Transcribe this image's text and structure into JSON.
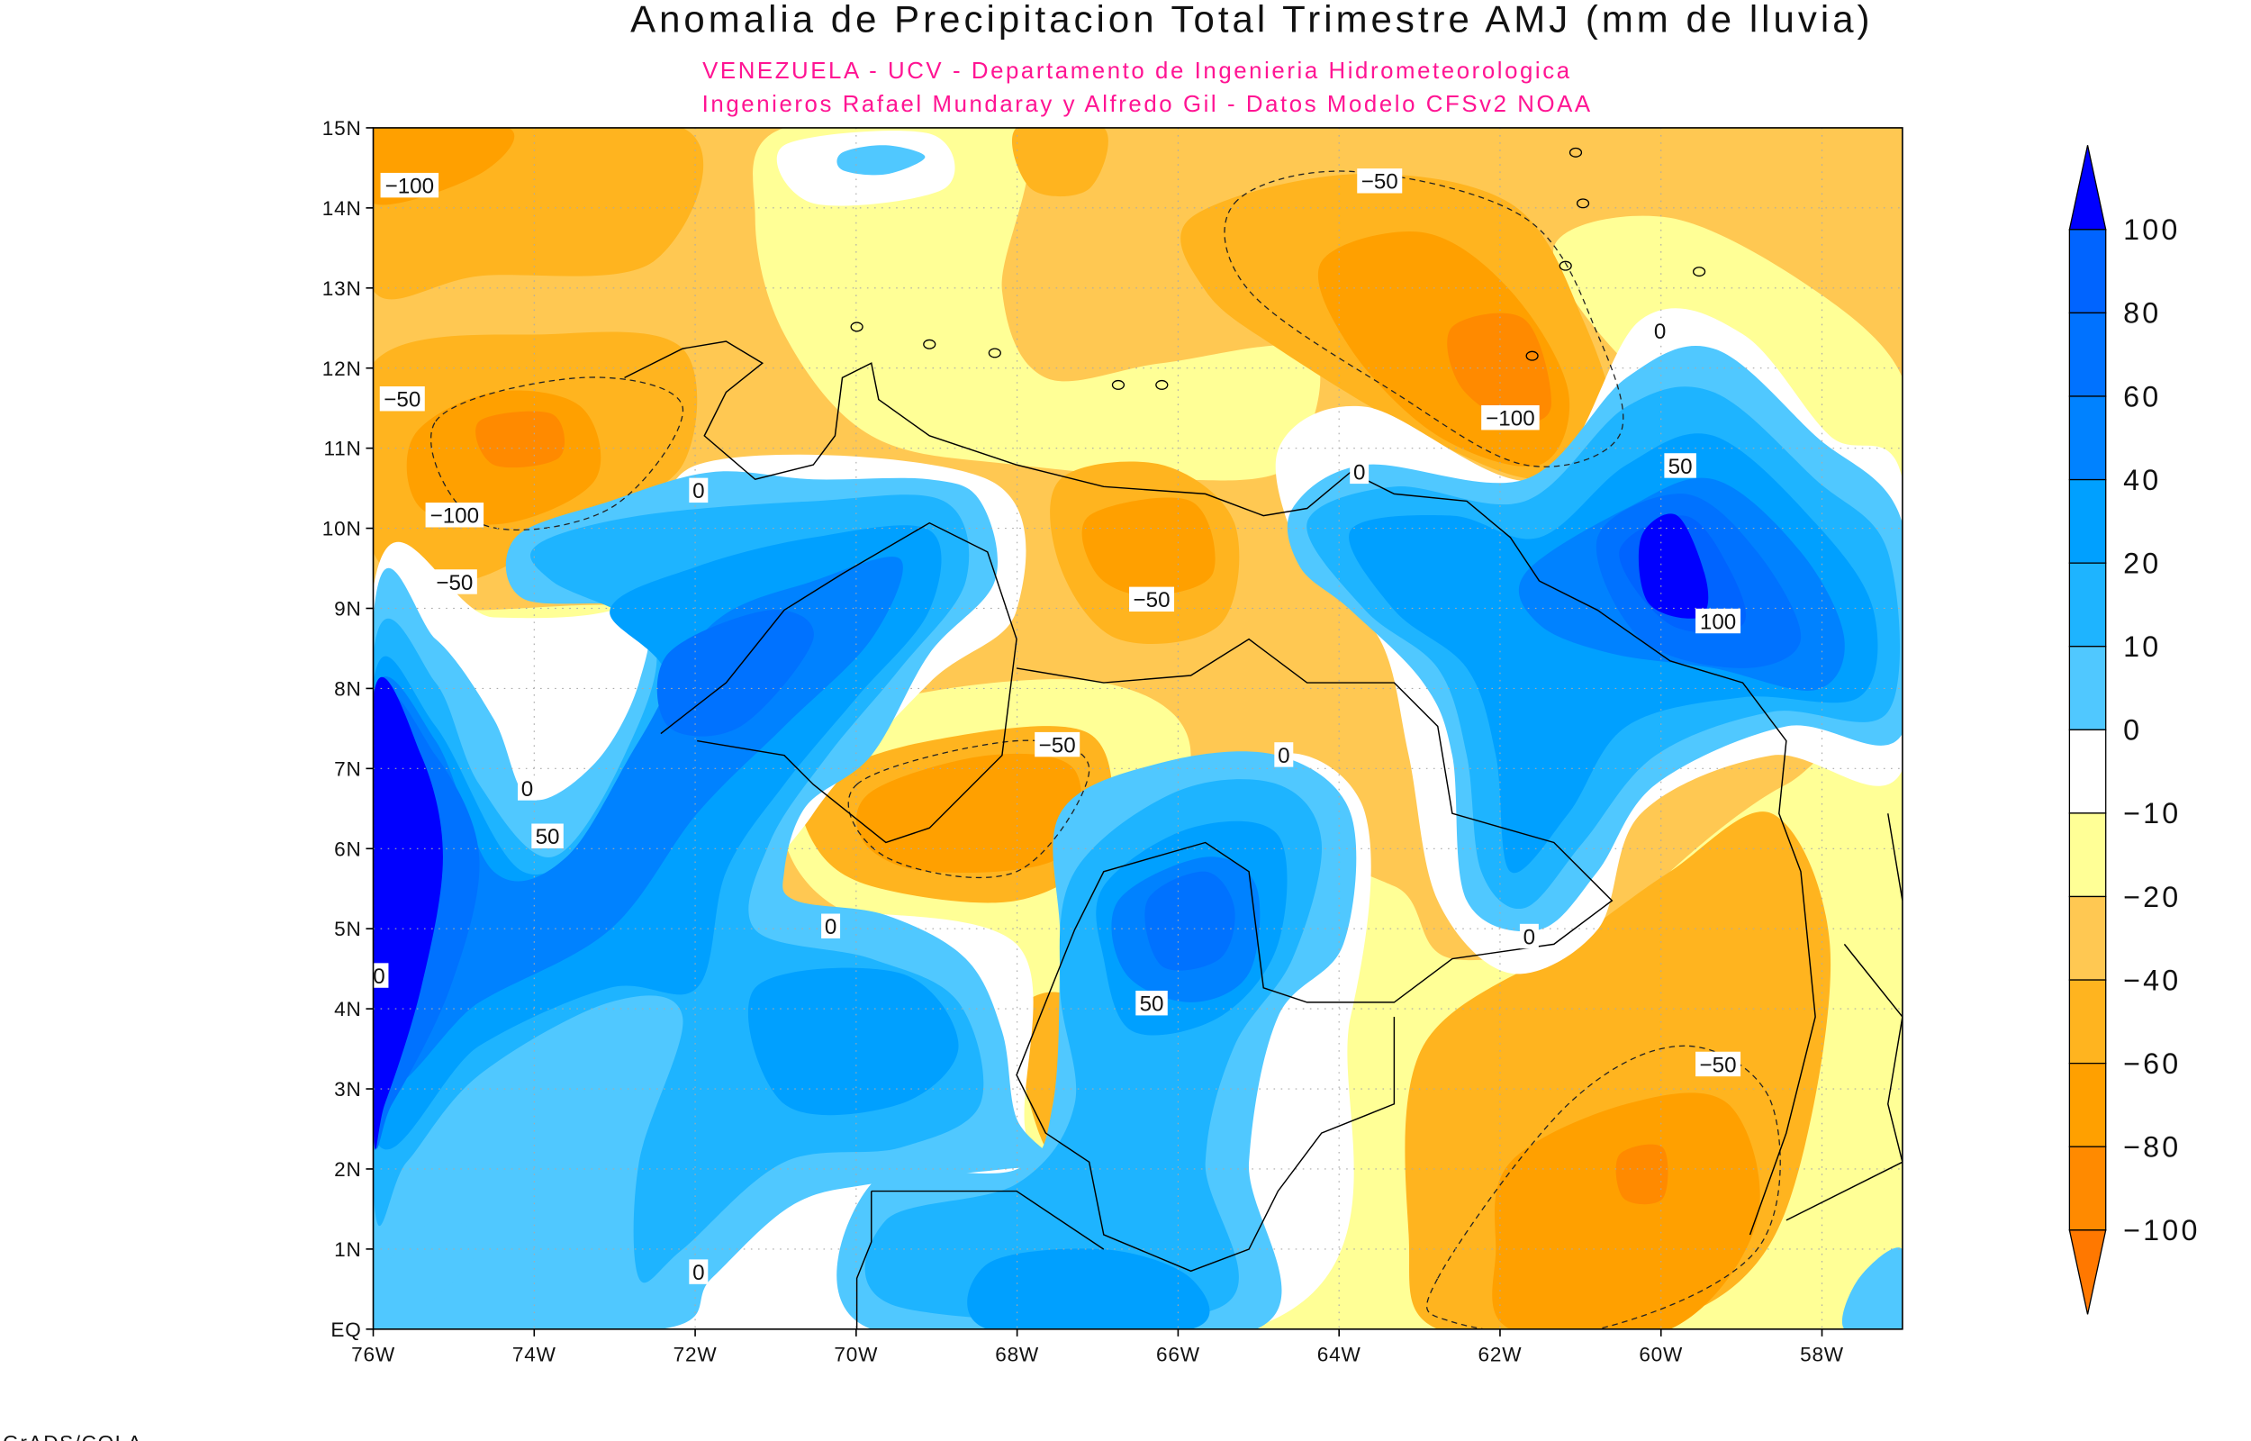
{
  "chart_data": {
    "type": "heatmap",
    "title": "Anomalia de Precipitacion Total Trimestre AMJ (mm de lluvia)",
    "subtitle_lines": [
      "VENEZUELA - UCV - Departamento de Ingenieria Hidrometeorologica",
      "Ingenieros Rafael Mundaray y Alfredo Gil - Datos Modelo CFSv2 NOAA"
    ],
    "x_axis": {
      "range": [
        -76,
        -57
      ],
      "ticks": [
        "76W",
        "74W",
        "72W",
        "70W",
        "68W",
        "66W",
        "64W",
        "62W",
        "60W",
        "58W"
      ]
    },
    "y_axis": {
      "range": [
        0,
        15
      ],
      "ticks": [
        "EQ",
        "1N",
        "2N",
        "3N",
        "4N",
        "5N",
        "6N",
        "7N",
        "8N",
        "9N",
        "10N",
        "11N",
        "12N",
        "13N",
        "14N",
        "15N"
      ]
    },
    "grid": true,
    "colorbar": {
      "placement": "right",
      "levels": [
        100,
        80,
        60,
        40,
        20,
        10,
        0,
        -10,
        -20,
        -40,
        -60,
        -80,
        -100
      ],
      "labels": [
        "100",
        "80",
        "60",
        "40",
        "20",
        "10",
        "0",
        "−10",
        "−20",
        "−40",
        "−60",
        "−80",
        "−100"
      ],
      "colors": [
        "#0000ff",
        "#0064ff",
        "#0072ff",
        "#0082ff",
        "#00a0ff",
        "#1eb4ff",
        "#50c8ff",
        "#ffffff",
        "#ffff96",
        "#ffc852",
        "#ffb41f",
        "#ffa000",
        "#ff8a00",
        "#ff7800"
      ]
    },
    "contour_labels": [
      "−100",
      "−50",
      "−100",
      "−50",
      "0",
      "0",
      "50",
      "−50",
      "0",
      "−100",
      "50",
      "100",
      "−50",
      "−50",
      "0",
      "0",
      "0",
      "50",
      "−50",
      "0",
      "0",
      "0"
    ],
    "units": "mm"
  },
  "footer": "GrADS/COLA"
}
